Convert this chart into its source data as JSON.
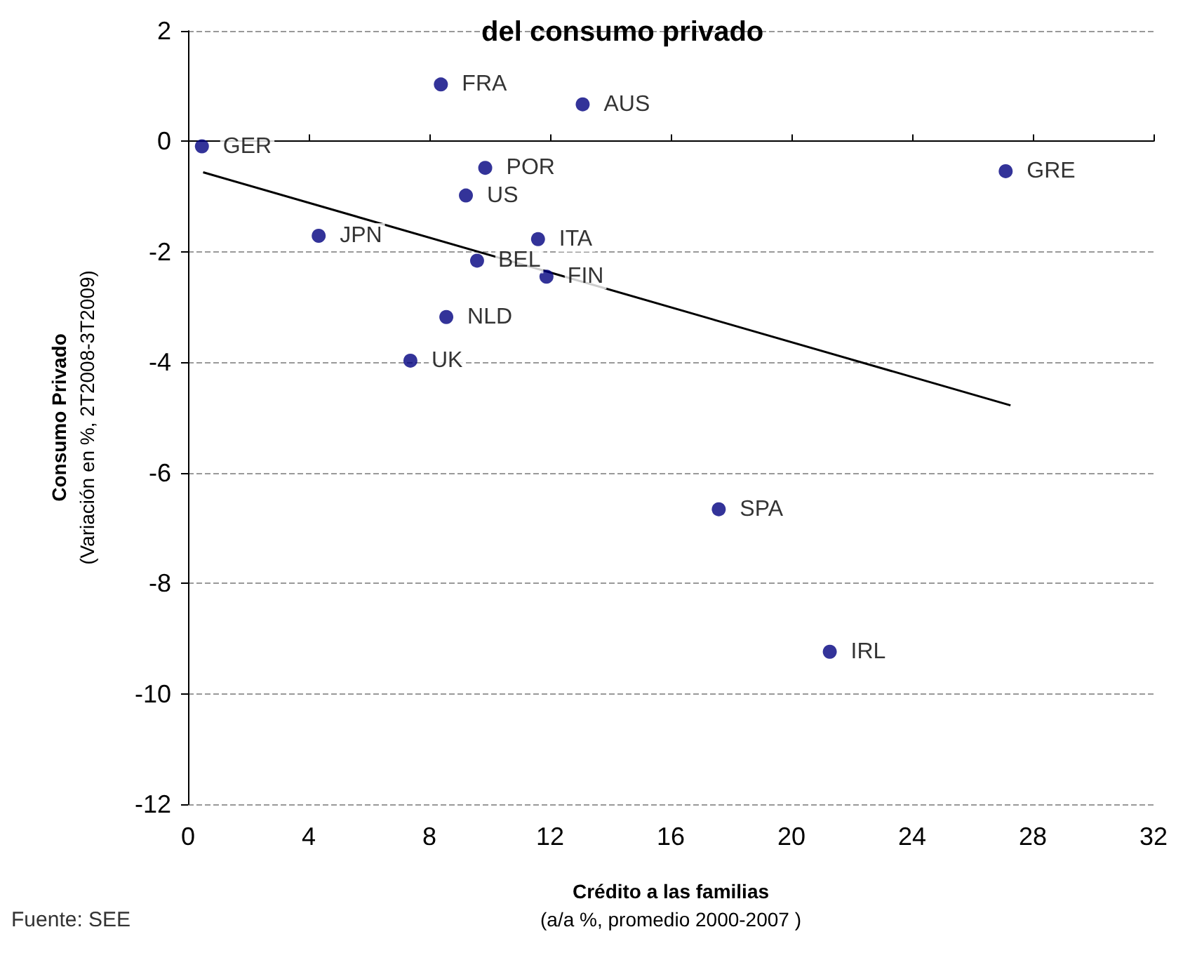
{
  "chart_data": {
    "type": "scatter",
    "title": "del consumo privado",
    "xlabel": "Crédito a las familias\n(a/a %, promedio 2000-2007 )",
    "ylabel": "Consumo Privado\n(Variación en %, 2T2008-3T2009)",
    "annotations": [
      "Fuente: SEE"
    ],
    "series": [
      {
        "color": "#000080",
        "x": [
          0.46,
          8.38,
          13.08,
          9.85,
          27.1,
          9.21,
          11.6,
          4.33,
          9.58,
          11.88,
          8.56,
          7.37,
          17.59,
          21.27
        ],
        "values": [
          -0.09,
          1.03,
          0.67,
          -0.48,
          -0.54,
          -0.98,
          -1.77,
          -1.71,
          -2.16,
          -2.45,
          -3.18,
          -3.97,
          -6.66,
          -9.24
        ],
        "value_labels": [
          "GER",
          "FRA",
          "AUS",
          "POR",
          "GRE",
          "US",
          "ITA",
          "JPN",
          "BEL",
          "FIN",
          "NLD",
          "UK",
          "SPA",
          "IRL"
        ]
      },
      {
        "type": "line",
        "marker": "none",
        "color": "#000000",
        "x": [
          0.5,
          27.26
        ],
        "values": [
          -0.56,
          -4.78
        ]
      }
    ],
    "xlim": [
      0,
      32
    ],
    "xticks": [
      0,
      4,
      8,
      12,
      16,
      20,
      24,
      28,
      32
    ],
    "ylim": [
      -12,
      2
    ],
    "yticks": [
      -12,
      -10,
      -8,
      -6,
      -4,
      -2,
      0,
      2
    ],
    "grid": "y",
    "marker": "circle"
  }
}
